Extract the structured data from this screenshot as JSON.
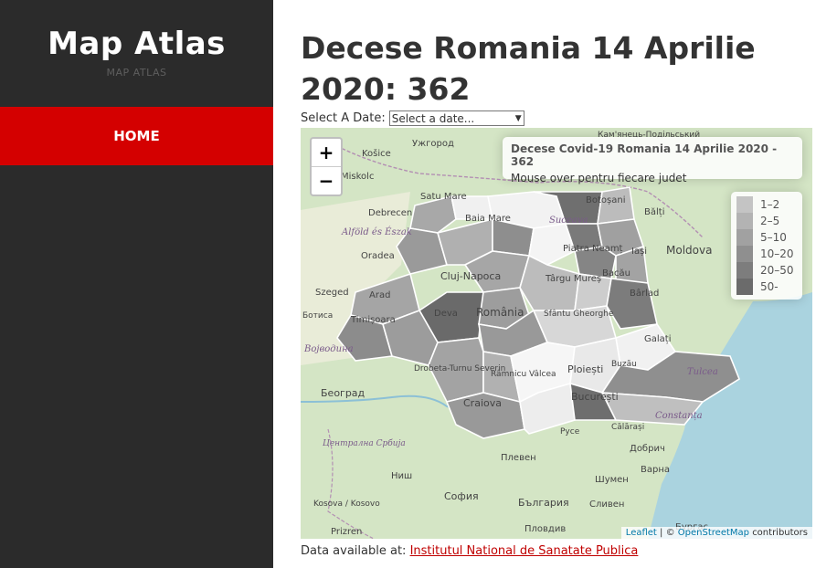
{
  "sidebar": {
    "brand": "Map Atlas",
    "brand_sub": "MAP ATLAS",
    "nav_home": "HOME"
  },
  "main": {
    "title": "Decese Romania 14 Aprilie 2020: 362",
    "date_label": "Select A Date:",
    "date_select_value": "Select a date..."
  },
  "map": {
    "zoom_in": "+",
    "zoom_out": "−",
    "info_title": "Decese Covid-19 Romania 14 Aprilie 2020 - 362",
    "info_hint": "Mouse over pentru fiecare judet",
    "legend": [
      {
        "label": "1–2",
        "color": "#c4c4c4"
      },
      {
        "label": "2–5",
        "color": "#b3b3b3"
      },
      {
        "label": "5–10",
        "color": "#a1a1a1"
      },
      {
        "label": "10–20",
        "color": "#8f8f8f"
      },
      {
        "label": "20–50",
        "color": "#7d7d7d"
      },
      {
        "label": "50-",
        "color": "#6b6b6b"
      }
    ],
    "attribution_leaflet": "Leaflet",
    "attribution_sep": "| ©",
    "attribution_osm": "OpenStreetMap",
    "attribution_tail": "contributors",
    "place_labels": [
      {
        "text": "Ужгород",
        "k": "ujg"
      },
      {
        "text": "Košice",
        "k": "kos"
      },
      {
        "text": "Miskolc",
        "k": "mis"
      },
      {
        "text": "Satu Mare",
        "k": "sat"
      },
      {
        "text": "Baia Mare",
        "k": "bai"
      },
      {
        "text": "Suceava",
        "k": "suc"
      },
      {
        "text": "Botoșani",
        "k": "bot"
      },
      {
        "text": "Bălți",
        "k": "bal"
      },
      {
        "text": "Debrecen",
        "k": "deb"
      },
      {
        "text": "Alföld és Észak",
        "k": "alf"
      },
      {
        "text": "Piatra Neamț",
        "k": "pia"
      },
      {
        "text": "Iași",
        "k": "ias"
      },
      {
        "text": "Moldova",
        "k": "mol"
      },
      {
        "text": "Oradea",
        "k": "ora"
      },
      {
        "text": "Cluj-Napoca",
        "k": "clu"
      },
      {
        "text": "Târgu Mureș",
        "k": "tar"
      },
      {
        "text": "Bacău",
        "k": "bac"
      },
      {
        "text": "Szeged",
        "k": "sze"
      },
      {
        "text": "Arad",
        "k": "ara"
      },
      {
        "text": "Bârlad",
        "k": "bar"
      },
      {
        "text": "Timișoara",
        "k": "tim"
      },
      {
        "text": "Deva",
        "k": "dev"
      },
      {
        "text": "România",
        "k": "rom"
      },
      {
        "text": "Sfântu Gheorghe",
        "k": "sfg"
      },
      {
        "text": "Galați",
        "k": "gal"
      },
      {
        "text": "Војводина",
        "k": "voj"
      },
      {
        "text": "Drobeta-Turnu Severin",
        "k": "dro"
      },
      {
        "text": "Râmnicu Vâlcea",
        "k": "ram"
      },
      {
        "text": "Ploiești",
        "k": "plo"
      },
      {
        "text": "Buzău",
        "k": "buz"
      },
      {
        "text": "Tulcea",
        "k": "tul"
      },
      {
        "text": "Београд",
        "k": "beo"
      },
      {
        "text": "Craiova",
        "k": "cra"
      },
      {
        "text": "București",
        "k": "buc"
      },
      {
        "text": "Constanța",
        "k": "con"
      },
      {
        "text": "Călărași",
        "k": "cal"
      },
      {
        "text": "Русе",
        "k": "rus"
      },
      {
        "text": "Централна Србија",
        "k": "cen"
      },
      {
        "text": "Плевен",
        "k": "ple"
      },
      {
        "text": "Добрич",
        "k": "dob"
      },
      {
        "text": "Варна",
        "k": "var"
      },
      {
        "text": "Ниш",
        "k": "nis"
      },
      {
        "text": "Шумен",
        "k": "shu"
      },
      {
        "text": "София",
        "k": "sof"
      },
      {
        "text": "България",
        "k": "bul"
      },
      {
        "text": "Kosova / Kosovo",
        "k": "ksv"
      },
      {
        "text": "Сливен",
        "k": "sli"
      },
      {
        "text": "Prizren",
        "k": "pri"
      },
      {
        "text": "Пловдив",
        "k": "plv"
      },
      {
        "text": "Бургас",
        "k": "bur"
      },
      {
        "text": "Ботиса",
        "k": "bts"
      },
      {
        "text": "Кам'янець-Подільський",
        "k": "kam"
      },
      {
        "text": "Szeged",
        "k": "sz2"
      }
    ]
  },
  "footer": {
    "prefix": "Data available at:",
    "link": "Institutul National de Sanatate Publica"
  }
}
